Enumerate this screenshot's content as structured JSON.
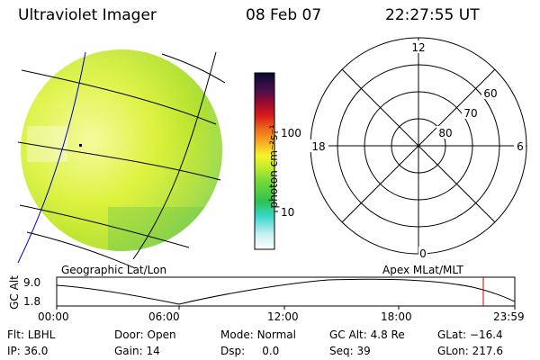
{
  "header": {
    "instrument": "Ultraviolet Imager",
    "date": "08 Feb 07",
    "time": "22:27:55 UT"
  },
  "colorbar": {
    "unit": "photon cm⁻²s⁻¹",
    "ticks": [
      "100",
      "10"
    ]
  },
  "polar_plot": {
    "mlt_labels": {
      "top": "12",
      "left": "18",
      "right": "6",
      "bottom": "0"
    },
    "lat_labels": [
      "60",
      "70",
      "80"
    ]
  },
  "orbit_panel": {
    "left_title": "Geographic Lat/Lon",
    "right_title": "Apex MLat/MLT",
    "ylabel": "GC Alt",
    "yticks": [
      "9.0",
      "1.8"
    ],
    "xticks": [
      "00:00",
      "06:00",
      "12:00",
      "18:00",
      "23:59"
    ],
    "marker_color": "#cc0000"
  },
  "info": {
    "row1": [
      {
        "label": "Flt:",
        "value": "LBHL"
      },
      {
        "label": "Door:",
        "value": "Open"
      },
      {
        "label": "Mode:",
        "value": "Normal"
      },
      {
        "label": "GC Alt:",
        "value": "4.8 Re"
      },
      {
        "label": "GLat:",
        "value": "−16.4"
      }
    ],
    "row2": [
      {
        "label": "IP:",
        "value": "36.0"
      },
      {
        "label": "Gain:",
        "value": "14"
      },
      {
        "label": "Dsp:",
        "value": "0.0"
      },
      {
        "label": "Seq:",
        "value": "39"
      },
      {
        "label": "GLon:",
        "value": "217.6"
      }
    ]
  }
}
